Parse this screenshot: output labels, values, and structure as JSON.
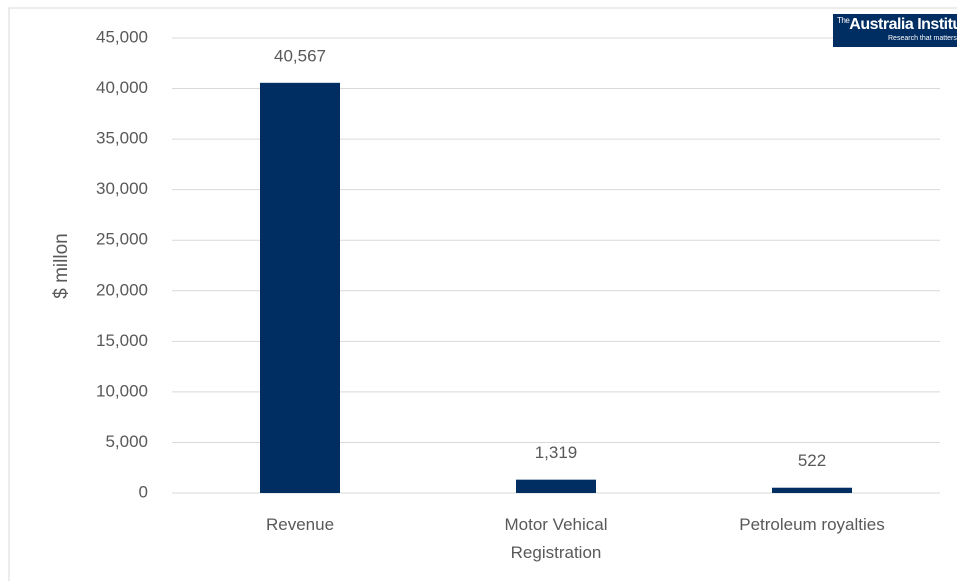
{
  "chart_data": {
    "type": "bar",
    "y_label": "$ millon",
    "categories": [
      "Revenue",
      "Motor Vehical Registration",
      "Petroleum royalties"
    ],
    "values": [
      40567,
      1319,
      522
    ],
    "value_labels": [
      "40,567",
      "1,319",
      "522"
    ],
    "color": "#002d62",
    "ylim": [
      0,
      45000
    ],
    "yticks": [
      0,
      {
        "value": 5000,
        "label": "5,000"
      },
      {
        "value": 10000,
        "label": "10,000"
      },
      {
        "value": 15000,
        "label": "15,000"
      },
      {
        "value": 20000,
        "label": "20,000"
      },
      {
        "value": 25000,
        "label": "25,000"
      },
      {
        "value": 30000,
        "label": "30,000"
      },
      {
        "value": 35000,
        "label": "35,000"
      },
      {
        "value": 40000,
        "label": "40,000"
      },
      {
        "value": 45000,
        "label": "45,000"
      }
    ],
    "grid": true
  },
  "logo": {
    "prefix": "The",
    "name": "Australia Institute",
    "tagline": "Research that matters"
  }
}
